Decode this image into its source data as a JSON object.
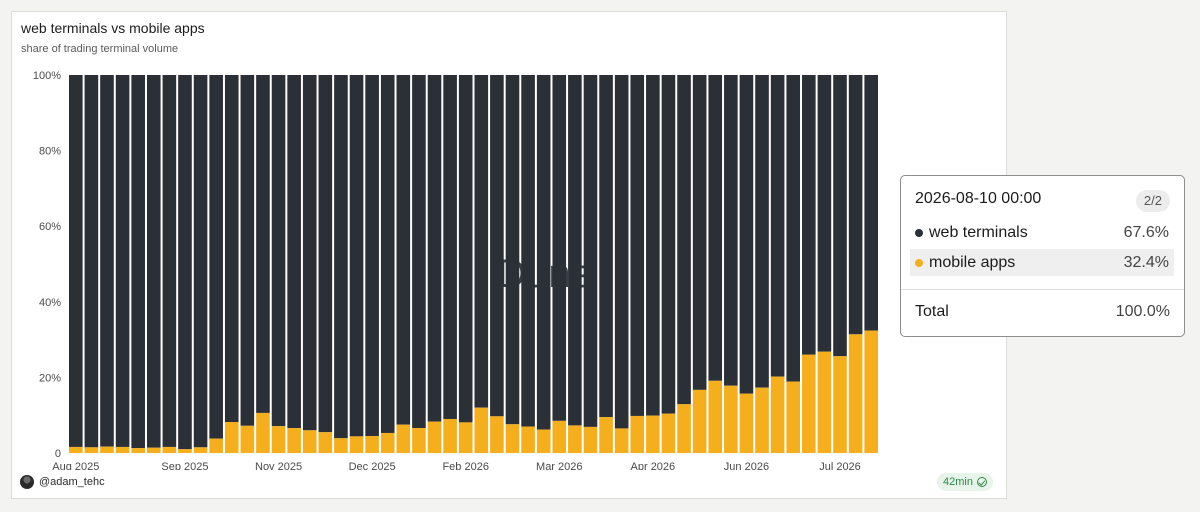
{
  "card": {
    "author": "@adam_tehc",
    "refresh": "42min"
  },
  "watermark": "Dune",
  "tooltip": {
    "date": "2026-08-10 00:00",
    "page": "2/2",
    "rows": [
      {
        "name": "web terminals",
        "value": "67.6%",
        "color": "#2b2f36"
      },
      {
        "name": "mobile apps",
        "value": "32.4%",
        "color": "#f5ae1c"
      }
    ],
    "total_label": "Total",
    "total_value": "100.0%"
  },
  "chart_data": {
    "type": "bar",
    "stacked": true,
    "normalized": true,
    "title": "web terminals vs mobile apps",
    "subtitle": "share of trading terminal volume",
    "xlabel": "",
    "ylabel": "",
    "ylim": [
      0,
      100
    ],
    "y_ticks": [
      "0",
      "20%",
      "40%",
      "60%",
      "80%",
      "100%"
    ],
    "x_tick_labels": [
      "Aug 2025",
      "Sep 2025",
      "Nov 2025",
      "Dec 2025",
      "Feb 2026",
      "Mar 2026",
      "Apr 2026",
      "Jun 2026",
      "Jul 2026"
    ],
    "x_tick_weeks": [
      0,
      7,
      13,
      19,
      25,
      31,
      37,
      43,
      49
    ],
    "first_week": "2025-08-04",
    "last_week": "2026-08-10",
    "series": [
      {
        "name": "mobile apps",
        "color": "#f5ae1c",
        "values": [
          1.6,
          1.5,
          1.7,
          1.6,
          1.3,
          1.4,
          1.6,
          1.0,
          1.5,
          3.8,
          8.2,
          7.2,
          10.6,
          7.1,
          6.6,
          6.0,
          5.5,
          3.9,
          4.4,
          4.5,
          5.3,
          7.5,
          6.6,
          8.3,
          9.0,
          8.1,
          12.0,
          9.7,
          7.6,
          7.0,
          6.2,
          8.5,
          7.3,
          6.9,
          9.5,
          6.5,
          9.8,
          9.9,
          10.4,
          12.9,
          16.7,
          19.1,
          17.8,
          15.7,
          17.3,
          20.2,
          18.9,
          26.0,
          26.8,
          25.6,
          31.4,
          32.4
        ]
      },
      {
        "name": "web terminals",
        "color": "#2b2f36",
        "values": [
          98.4,
          98.5,
          98.3,
          98.4,
          98.7,
          98.6,
          98.4,
          99.0,
          98.5,
          96.2,
          91.8,
          92.8,
          89.4,
          92.9,
          93.4,
          94.0,
          94.5,
          96.1,
          95.6,
          95.5,
          94.7,
          92.5,
          93.4,
          91.7,
          91.0,
          91.9,
          88.0,
          90.3,
          92.4,
          93.0,
          93.8,
          91.5,
          92.7,
          93.1,
          90.5,
          93.5,
          90.2,
          90.1,
          89.6,
          87.1,
          83.3,
          80.9,
          82.2,
          84.3,
          82.7,
          79.8,
          81.1,
          74.0,
          73.2,
          74.4,
          68.6,
          67.6
        ]
      }
    ]
  }
}
